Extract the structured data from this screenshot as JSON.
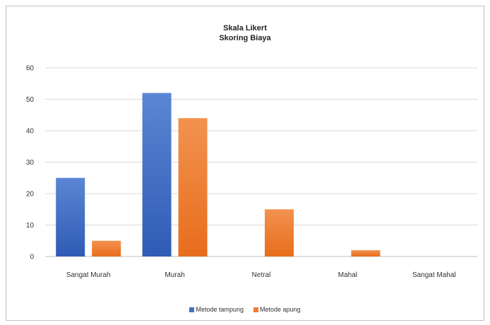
{
  "chart_data": {
    "type": "bar",
    "title": "Skala Likert",
    "subtitle": "Skoring Biaya",
    "categories": [
      "Sangat Murah",
      "Murah",
      "Netral",
      "Mahal",
      "Sangat Mahal"
    ],
    "series": [
      {
        "name": "Metode tampung",
        "values": [
          25,
          52,
          0,
          0,
          0
        ],
        "color": "#4472C4"
      },
      {
        "name": "Metode apung",
        "values": [
          5,
          44,
          15,
          2,
          0
        ],
        "color": "#ED7D31"
      }
    ],
    "ylim": [
      0,
      60
    ],
    "yticks": [
      0,
      10,
      20,
      30,
      40,
      50,
      60
    ],
    "grid": true,
    "legend": "bottom"
  }
}
